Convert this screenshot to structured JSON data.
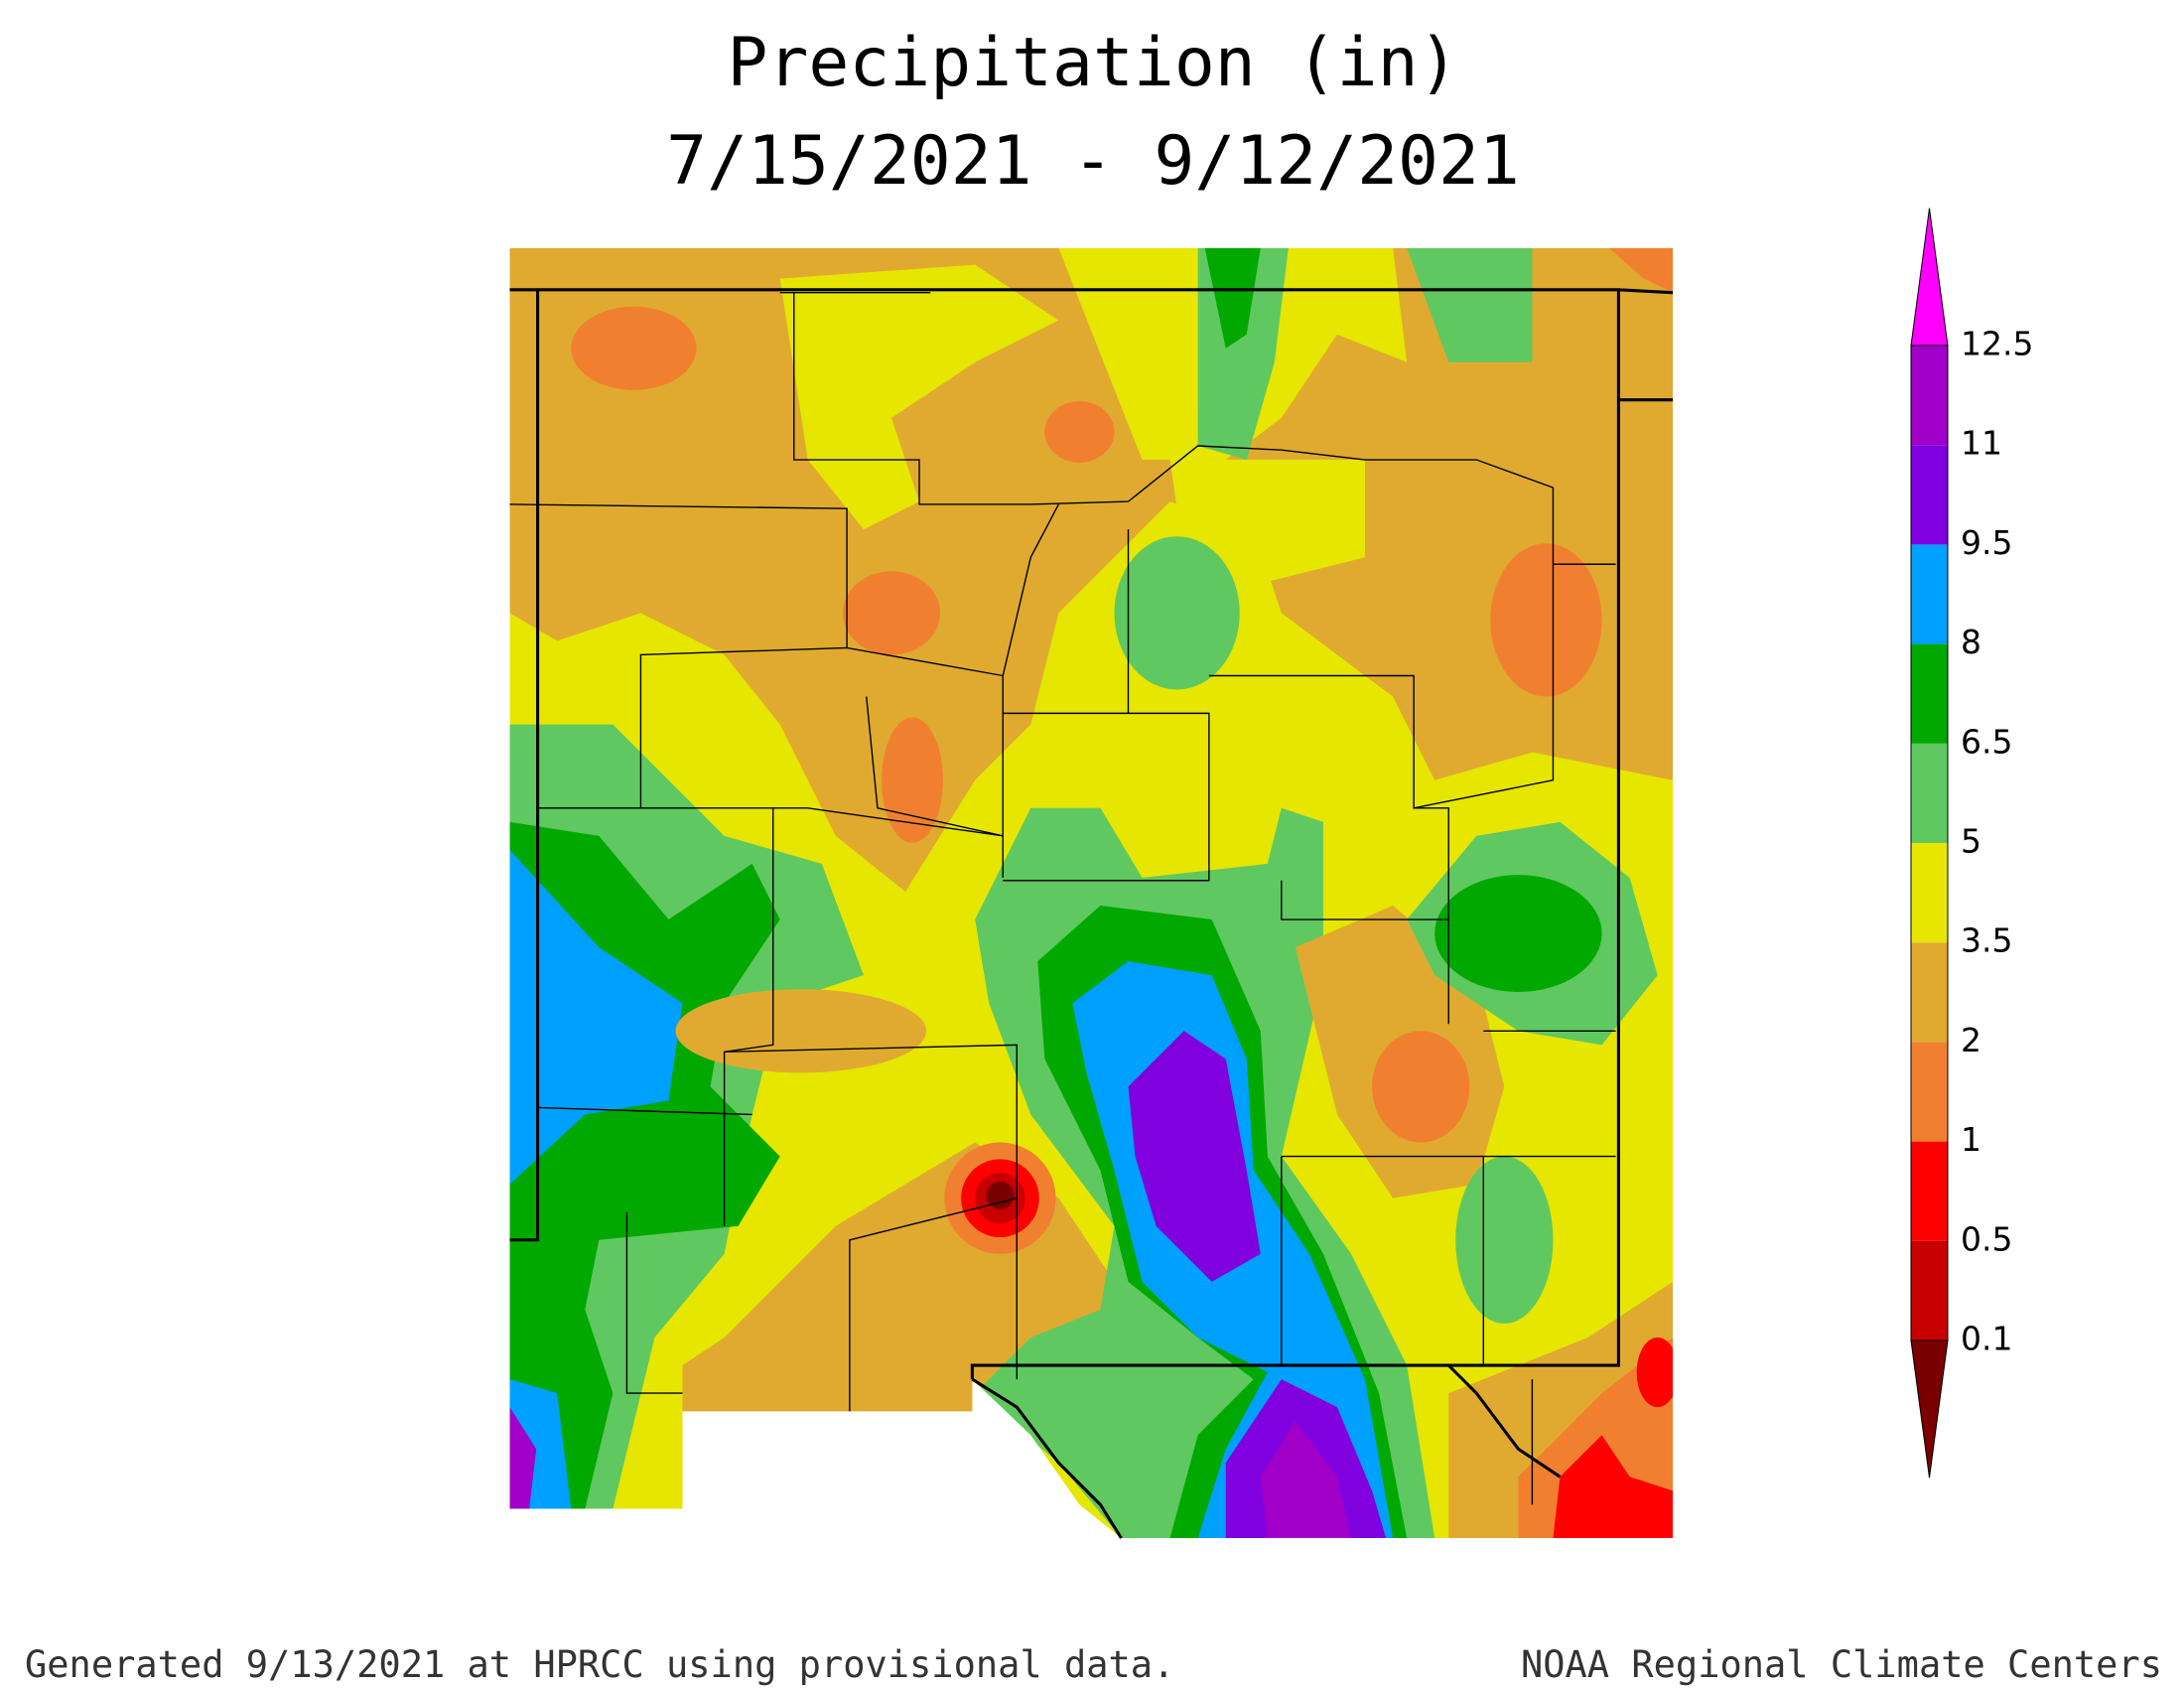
{
  "title": [
    "Precipitation (in)",
    "7/15/2021 - 9/12/2021"
  ],
  "colorbar": {
    "levels": [
      0.1,
      0.5,
      1,
      2,
      3.5,
      5,
      6.5,
      8,
      9.5,
      11,
      12.5
    ],
    "colors": [
      "#7a0000",
      "#c80000",
      "#ff0000",
      "#f08030",
      "#e0aa30",
      "#e6e600",
      "#60c860",
      "#00a800",
      "#00a0ff",
      "#8000e0",
      "#a000c8",
      "#ff00ff"
    ]
  },
  "footer": {
    "left": "Generated 9/13/2021 at HPRCC using provisional data.",
    "right": "NOAA Regional Climate Centers"
  }
}
